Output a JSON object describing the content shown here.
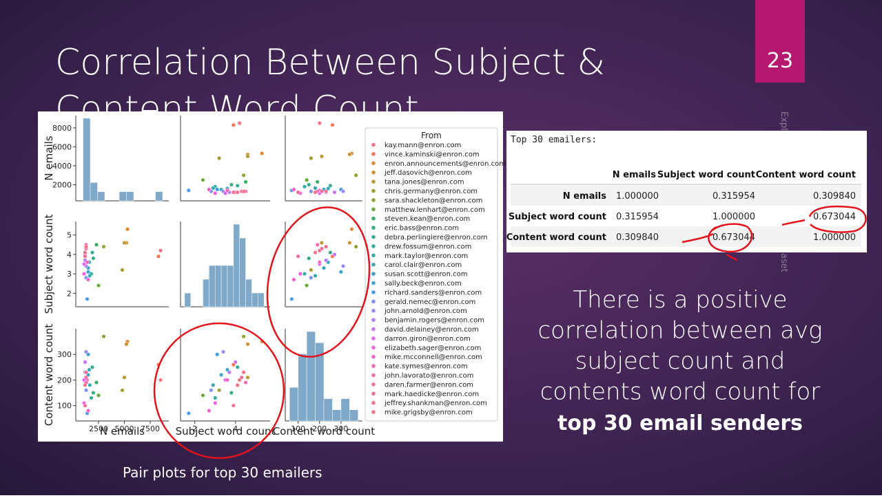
{
  "slide": {
    "title_lines": [
      "Correlation Between Subject &",
      "Content Word Count"
    ],
    "page_number": "23",
    "side_text_top": "Explo",
    "side_text_bottom": "aset",
    "body_lines": [
      "There is a positive",
      "correlation between avg",
      "subject count and",
      "contents word count for"
    ],
    "body_bold": "top 30 email senders",
    "caption": "Pair plots for top 30 emailers"
  },
  "table": {
    "caption": "Top 30 emailers:",
    "columns": [
      "N emails",
      "Subject word count",
      "Content word count"
    ],
    "rows": [
      {
        "label": "N emails",
        "values": [
          "1.000000",
          "0.315954",
          "0.309840"
        ]
      },
      {
        "label": "Subject word count",
        "values": [
          "0.315954",
          "1.000000",
          "0.673044"
        ]
      },
      {
        "label": "Content word count",
        "values": [
          "0.309840",
          "0.673044",
          "1.000000"
        ]
      }
    ]
  },
  "chart_data": {
    "type": "pairplot",
    "legend_title": "From",
    "variables": [
      "N emails",
      "Subject word count",
      "Content word count"
    ],
    "lims": [
      [
        300,
        9300
      ],
      [
        1.3,
        5.7
      ],
      [
        40,
        400
      ]
    ],
    "ticks": [
      [
        2500,
        5000,
        7500
      ],
      [
        2,
        4
      ],
      [
        100,
        200,
        300
      ]
    ],
    "yticks": [
      [
        2000,
        4000,
        6000,
        8000
      ],
      [
        2,
        3,
        4,
        5
      ],
      [
        100,
        200,
        300
      ]
    ],
    "senders": [
      "kay.mann@enron.com",
      "vince.kaminski@enron.com",
      "enron.announcements@enron.com",
      "jeff.dasovich@enron.com",
      "tana.jones@enron.com",
      "chris.germany@enron.com",
      "sara.shackleton@enron.com",
      "matthew.lenhart@enron.com",
      "steven.kean@enron.com",
      "eric.bass@enron.com",
      "debra.perlingiere@enron.com",
      "drew.fossum@enron.com",
      "mark.taylor@enron.com",
      "carol.clair@enron.com",
      "susan.scott@enron.com",
      "sally.beck@enron.com",
      "richard.sanders@enron.com",
      "gerald.nemec@enron.com",
      "john.arnold@enron.com",
      "benjamin.rogers@enron.com",
      "david.delainey@enron.com",
      "darron.giron@enron.com",
      "elizabeth.sager@enron.com",
      "mike.mcconnell@enron.com",
      "kate.symes@enron.com",
      "john.lavorato@enron.com",
      "daren.farmer@enron.com",
      "mark.haedicke@enron.com",
      "jeffrey.shankman@enron.com",
      "mike.grigsby@enron.com"
    ],
    "colors": [
      "#f77189",
      "#f7754f",
      "#e08932",
      "#ce9032",
      "#bb9832",
      "#a69d32",
      "#8ea531",
      "#6aac31",
      "#32b166",
      "#34af84",
      "#35ad94",
      "#36aba1",
      "#36a9ad",
      "#37a7b9",
      "#38a5c7",
      "#3ba1d8",
      "#4b9cf0",
      "#7b92f4",
      "#9b88f4",
      "#b57ff4",
      "#cc72f4",
      "#e264f4",
      "#f45ee2",
      "#f562cf",
      "#f566bd",
      "#f66aad",
      "#f66c9d",
      "#f76e95",
      "#f7708e",
      "#f7728a"
    ],
    "values": [
      [
        8500,
        8300,
        5300,
        5200,
        5000,
        4800,
        3000,
        2500,
        2300,
        2000,
        1900,
        1800,
        1650,
        1600,
        1500,
        1500,
        1400,
        1300,
        1300,
        1200,
        1200,
        1100,
        1100,
        1500,
        1400,
        1300,
        1300,
        1200,
        1300,
        1200
      ],
      [
        4.2,
        3.9,
        5.3,
        4.6,
        4.6,
        3.2,
        4.4,
        2.4,
        4.5,
        3.8,
        4.1,
        3.0,
        2.9,
        3.6,
        3.3,
        3.1,
        1.7,
        2.8,
        3.4,
        3.7,
        4.0,
        3.5,
        3.0,
        2.7,
        3.6,
        4.5,
        4.3,
        3.9,
        4.4,
        4.1
      ],
      [
        200,
        260,
        350,
        340,
        210,
        160,
        370,
        140,
        190,
        150,
        250,
        130,
        180,
        240,
        220,
        300,
        70,
        160,
        310,
        230,
        270,
        200,
        110,
        80,
        200,
        190,
        210,
        100,
        230,
        180
      ]
    ],
    "hist": [
      {
        "bins": [
          1000,
          1700,
          2400,
          3100,
          3800,
          4500,
          5200,
          5900,
          6600,
          7300,
          8000,
          8700
        ],
        "counts": [
          18,
          4,
          2,
          0,
          0,
          2,
          2,
          0,
          0,
          0,
          2
        ]
      },
      {
        "bins": [
          1.5,
          1.8,
          2.1,
          2.4,
          2.7,
          3.0,
          3.3,
          3.6,
          3.9,
          4.2,
          4.5,
          4.8,
          5.1,
          5.4
        ],
        "counts": [
          1,
          0,
          0,
          2,
          3,
          3,
          3,
          3,
          6,
          5,
          2,
          1,
          1
        ]
      },
      {
        "bins": [
          60,
          100,
          140,
          180,
          220,
          260,
          300,
          340,
          380
        ],
        "counts": [
          3,
          6,
          8,
          7,
          2,
          1,
          2,
          1
        ]
      }
    ],
    "hist_color": "#7fa8c9"
  }
}
